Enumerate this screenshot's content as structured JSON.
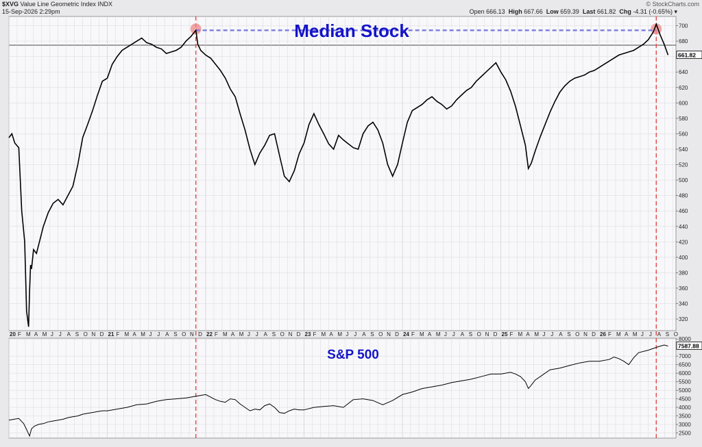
{
  "header": {
    "symbol": "$XVG",
    "name": "Value Line Geometric Index",
    "exchange": "INDX",
    "date": "15-Sep-2026 2:29pm",
    "source": "© StockCharts.com",
    "open_label": "Open",
    "open": "666.13",
    "high_label": "High",
    "high": "667.66",
    "low_label": "Low",
    "low": "659.39",
    "last_label": "Last",
    "last": "661.82",
    "chg_label": "Chg",
    "chg": "-4.31 (-0.65%)"
  },
  "colors": {
    "price_line": "#000000",
    "title_text": "#1414c8",
    "marker_vertical": "#e05050",
    "marker_horizontal": "#8080e0",
    "marker_circle": "#ee8888",
    "panel_bg": "#f8f8fa",
    "grid": "#d0d0d8"
  },
  "chart_data": [
    {
      "type": "line",
      "title": "Median Stock",
      "ylim": [
        305,
        712
      ],
      "yticks": [
        320,
        340,
        360,
        380,
        400,
        420,
        440,
        460,
        480,
        500,
        520,
        540,
        560,
        580,
        600,
        620,
        640,
        660,
        680,
        700
      ],
      "last_value_label": "661.82",
      "last_value": 661.82,
      "reference_level": 694,
      "series": [
        {
          "x": [
            2020.0,
            2020.03,
            2020.06,
            2020.1,
            2020.13,
            2020.16,
            2020.18,
            2020.2,
            2020.21,
            2020.22,
            2020.23,
            2020.25,
            2020.28,
            2020.31,
            2020.35,
            2020.4,
            2020.45,
            2020.5,
            2020.55,
            2020.6,
            2020.65,
            2020.7,
            2020.75,
            2020.8,
            2020.85,
            2020.9,
            2020.95,
            2021.0,
            2021.05,
            2021.1,
            2021.15,
            2021.2,
            2021.25,
            2021.3,
            2021.35,
            2021.4,
            2021.45,
            2021.5,
            2021.55,
            2021.6,
            2021.65,
            2021.7,
            2021.75,
            2021.8,
            2021.85,
            2021.9,
            2021.92,
            2021.95,
            2022.0,
            2022.05,
            2022.1,
            2022.15,
            2022.2,
            2022.25,
            2022.3,
            2022.35,
            2022.4,
            2022.45,
            2022.5,
            2022.55,
            2022.6,
            2022.65,
            2022.7,
            2022.75,
            2022.8,
            2022.85,
            2022.9,
            2022.95,
            2023.0,
            2023.05,
            2023.1,
            2023.15,
            2023.2,
            2023.25,
            2023.3,
            2023.35,
            2023.4,
            2023.45,
            2023.5,
            2023.55,
            2023.6,
            2023.65,
            2023.7,
            2023.75,
            2023.8,
            2023.85,
            2023.9,
            2023.95,
            2024.0,
            2024.05,
            2024.1,
            2024.15,
            2024.2,
            2024.25,
            2024.3,
            2024.35,
            2024.4,
            2024.45,
            2024.5,
            2024.55,
            2024.6,
            2024.65,
            2024.7,
            2024.75,
            2024.8,
            2024.85,
            2024.9,
            2024.95,
            2025.0,
            2025.05,
            2025.1,
            2025.15,
            2025.2,
            2025.25,
            2025.28,
            2025.31,
            2025.35,
            2025.4,
            2025.45,
            2025.5,
            2025.55,
            2025.6,
            2025.65,
            2025.7,
            2025.75,
            2025.8,
            2025.85,
            2025.9,
            2025.95,
            2026.0,
            2026.05,
            2026.1,
            2026.15,
            2026.2,
            2026.25,
            2026.3,
            2026.35,
            2026.4,
            2026.45,
            2026.5,
            2026.52,
            2026.55,
            2026.58,
            2026.62,
            2026.66,
            2026.7
          ],
          "y": [
            555,
            560,
            548,
            542,
            460,
            420,
            330,
            310,
            355,
            390,
            385,
            410,
            405,
            420,
            440,
            458,
            470,
            475,
            468,
            480,
            492,
            520,
            555,
            572,
            590,
            610,
            628,
            632,
            650,
            660,
            668,
            672,
            676,
            680,
            684,
            678,
            676,
            672,
            670,
            664,
            666,
            668,
            672,
            680,
            686,
            694,
            676,
            668,
            662,
            658,
            650,
            642,
            632,
            618,
            608,
            586,
            565,
            540,
            520,
            535,
            545,
            558,
            560,
            532,
            505,
            498,
            512,
            534,
            548,
            572,
            586,
            572,
            560,
            547,
            540,
            558,
            552,
            547,
            542,
            540,
            560,
            570,
            575,
            565,
            548,
            520,
            505,
            520,
            548,
            575,
            590,
            594,
            598,
            604,
            608,
            602,
            598,
            592,
            596,
            604,
            610,
            616,
            620,
            628,
            634,
            640,
            646,
            652,
            640,
            630,
            615,
            595,
            570,
            545,
            515,
            522,
            538,
            556,
            572,
            588,
            602,
            614,
            622,
            628,
            632,
            634,
            636,
            640,
            642,
            646,
            650,
            654,
            658,
            662,
            664,
            666,
            668,
            672,
            676,
            682,
            686,
            692,
            702,
            688,
            676,
            662
          ]
        }
      ]
    },
    {
      "type": "line",
      "title": "S&P 500",
      "ylim": [
        2200,
        8050
      ],
      "yticks": [
        2500,
        3000,
        3500,
        4000,
        4500,
        5000,
        5500,
        6000,
        6500,
        7000,
        8000
      ],
      "last_value_label": "7587.88",
      "last_value": 7587.88,
      "series": [
        {
          "x": [
            2020.0,
            2020.05,
            2020.1,
            2020.15,
            2020.18,
            2020.21,
            2020.23,
            2020.26,
            2020.3,
            2020.35,
            2020.4,
            2020.45,
            2020.5,
            2020.55,
            2020.6,
            2020.65,
            2020.7,
            2020.75,
            2020.8,
            2020.85,
            2020.9,
            2020.95,
            2021.0,
            2021.1,
            2021.2,
            2021.3,
            2021.4,
            2021.5,
            2021.6,
            2021.7,
            2021.8,
            2021.9,
            2021.95,
            2022.0,
            2022.05,
            2022.1,
            2022.15,
            2022.2,
            2022.25,
            2022.3,
            2022.35,
            2022.4,
            2022.45,
            2022.5,
            2022.55,
            2022.6,
            2022.65,
            2022.7,
            2022.75,
            2022.8,
            2022.85,
            2022.9,
            2022.95,
            2023.0,
            2023.1,
            2023.2,
            2023.3,
            2023.4,
            2023.5,
            2023.6,
            2023.7,
            2023.8,
            2023.9,
            2024.0,
            2024.1,
            2024.2,
            2024.3,
            2024.4,
            2024.5,
            2024.6,
            2024.7,
            2024.8,
            2024.9,
            2025.0,
            2025.1,
            2025.15,
            2025.2,
            2025.25,
            2025.28,
            2025.31,
            2025.35,
            2025.4,
            2025.45,
            2025.5,
            2025.6,
            2025.7,
            2025.8,
            2025.9,
            2026.0,
            2026.1,
            2026.15,
            2026.2,
            2026.25,
            2026.3,
            2026.35,
            2026.4,
            2026.5,
            2026.55,
            2026.6,
            2026.66,
            2026.7
          ],
          "y": [
            3250,
            3300,
            3350,
            3050,
            2700,
            2320,
            2750,
            2900,
            3000,
            3050,
            3150,
            3200,
            3250,
            3300,
            3400,
            3450,
            3500,
            3600,
            3650,
            3700,
            3750,
            3800,
            3800,
            3900,
            4000,
            4150,
            4200,
            4350,
            4450,
            4500,
            4550,
            4650,
            4700,
            4750,
            4600,
            4450,
            4350,
            4300,
            4500,
            4450,
            4200,
            4000,
            3800,
            3900,
            3850,
            4100,
            4200,
            4000,
            3700,
            3650,
            3800,
            3900,
            3850,
            3850,
            4000,
            4050,
            4100,
            4000,
            4450,
            4500,
            4400,
            4150,
            4400,
            4750,
            4900,
            5100,
            5200,
            5300,
            5450,
            5550,
            5650,
            5800,
            5950,
            5950,
            6050,
            5950,
            5800,
            5500,
            5100,
            5300,
            5600,
            5800,
            6000,
            6200,
            6300,
            6450,
            6600,
            6700,
            6700,
            6800,
            6950,
            6850,
            6700,
            6500,
            6900,
            7200,
            7350,
            7450,
            7550,
            7650,
            7590
          ]
        }
      ]
    }
  ],
  "x_axis": {
    "labels": [
      {
        "text": "20",
        "x": 2020.0,
        "major": true
      },
      {
        "text": "F",
        "x": 2020.083
      },
      {
        "text": "M",
        "x": 2020.167
      },
      {
        "text": "A",
        "x": 2020.25
      },
      {
        "text": "M",
        "x": 2020.333
      },
      {
        "text": "J",
        "x": 2020.417
      },
      {
        "text": "J",
        "x": 2020.5
      },
      {
        "text": "A",
        "x": 2020.583
      },
      {
        "text": "S",
        "x": 2020.667
      },
      {
        "text": "O",
        "x": 2020.75
      },
      {
        "text": "N",
        "x": 2020.833
      },
      {
        "text": "D",
        "x": 2020.917
      },
      {
        "text": "21",
        "x": 2021.0,
        "major": true
      },
      {
        "text": "F",
        "x": 2021.083
      },
      {
        "text": "M",
        "x": 2021.167
      },
      {
        "text": "A",
        "x": 2021.25
      },
      {
        "text": "M",
        "x": 2021.333
      },
      {
        "text": "J",
        "x": 2021.417
      },
      {
        "text": "J",
        "x": 2021.5
      },
      {
        "text": "A",
        "x": 2021.583
      },
      {
        "text": "S",
        "x": 2021.667
      },
      {
        "text": "O",
        "x": 2021.75
      },
      {
        "text": "N",
        "x": 2021.833
      },
      {
        "text": "D",
        "x": 2021.917
      },
      {
        "text": "22",
        "x": 2022.0,
        "major": true
      },
      {
        "text": "F",
        "x": 2022.083
      },
      {
        "text": "M",
        "x": 2022.167
      },
      {
        "text": "A",
        "x": 2022.25
      },
      {
        "text": "M",
        "x": 2022.333
      },
      {
        "text": "J",
        "x": 2022.417
      },
      {
        "text": "J",
        "x": 2022.5
      },
      {
        "text": "A",
        "x": 2022.583
      },
      {
        "text": "S",
        "x": 2022.667
      },
      {
        "text": "O",
        "x": 2022.75
      },
      {
        "text": "N",
        "x": 2022.833
      },
      {
        "text": "D",
        "x": 2022.917
      },
      {
        "text": "23",
        "x": 2023.0,
        "major": true
      },
      {
        "text": "F",
        "x": 2023.083
      },
      {
        "text": "M",
        "x": 2023.167
      },
      {
        "text": "A",
        "x": 2023.25
      },
      {
        "text": "M",
        "x": 2023.333
      },
      {
        "text": "J",
        "x": 2023.417
      },
      {
        "text": "J",
        "x": 2023.5
      },
      {
        "text": "A",
        "x": 2023.583
      },
      {
        "text": "S",
        "x": 2023.667
      },
      {
        "text": "O",
        "x": 2023.75
      },
      {
        "text": "N",
        "x": 2023.833
      },
      {
        "text": "D",
        "x": 2023.917
      },
      {
        "text": "24",
        "x": 2024.0,
        "major": true
      },
      {
        "text": "F",
        "x": 2024.083
      },
      {
        "text": "M",
        "x": 2024.167
      },
      {
        "text": "A",
        "x": 2024.25
      },
      {
        "text": "M",
        "x": 2024.333
      },
      {
        "text": "J",
        "x": 2024.417
      },
      {
        "text": "J",
        "x": 2024.5
      },
      {
        "text": "A",
        "x": 2024.583
      },
      {
        "text": "S",
        "x": 2024.667
      },
      {
        "text": "O",
        "x": 2024.75
      },
      {
        "text": "N",
        "x": 2024.833
      },
      {
        "text": "D",
        "x": 2024.917
      },
      {
        "text": "25",
        "x": 2025.0,
        "major": true
      },
      {
        "text": "F",
        "x": 2025.083
      },
      {
        "text": "M",
        "x": 2025.167
      },
      {
        "text": "A",
        "x": 2025.25
      },
      {
        "text": "M",
        "x": 2025.333
      },
      {
        "text": "J",
        "x": 2025.417
      },
      {
        "text": "J",
        "x": 2025.5
      },
      {
        "text": "A",
        "x": 2025.583
      },
      {
        "text": "S",
        "x": 2025.667
      },
      {
        "text": "O",
        "x": 2025.75
      },
      {
        "text": "N",
        "x": 2025.833
      },
      {
        "text": "D",
        "x": 2025.917
      },
      {
        "text": "26",
        "x": 2026.0,
        "major": true
      },
      {
        "text": "F",
        "x": 2026.083
      },
      {
        "text": "M",
        "x": 2026.167
      },
      {
        "text": "A",
        "x": 2026.25
      },
      {
        "text": "M",
        "x": 2026.333
      },
      {
        "text": "J",
        "x": 2026.417
      },
      {
        "text": "J",
        "x": 2026.5
      },
      {
        "text": "A",
        "x": 2026.583
      },
      {
        "text": "S",
        "x": 2026.667
      },
      {
        "text": "O",
        "x": 2026.75
      }
    ],
    "xlim": [
      2020.0,
      2026.78
    ],
    "marker_dates": [
      2021.9,
      2026.58
    ]
  }
}
